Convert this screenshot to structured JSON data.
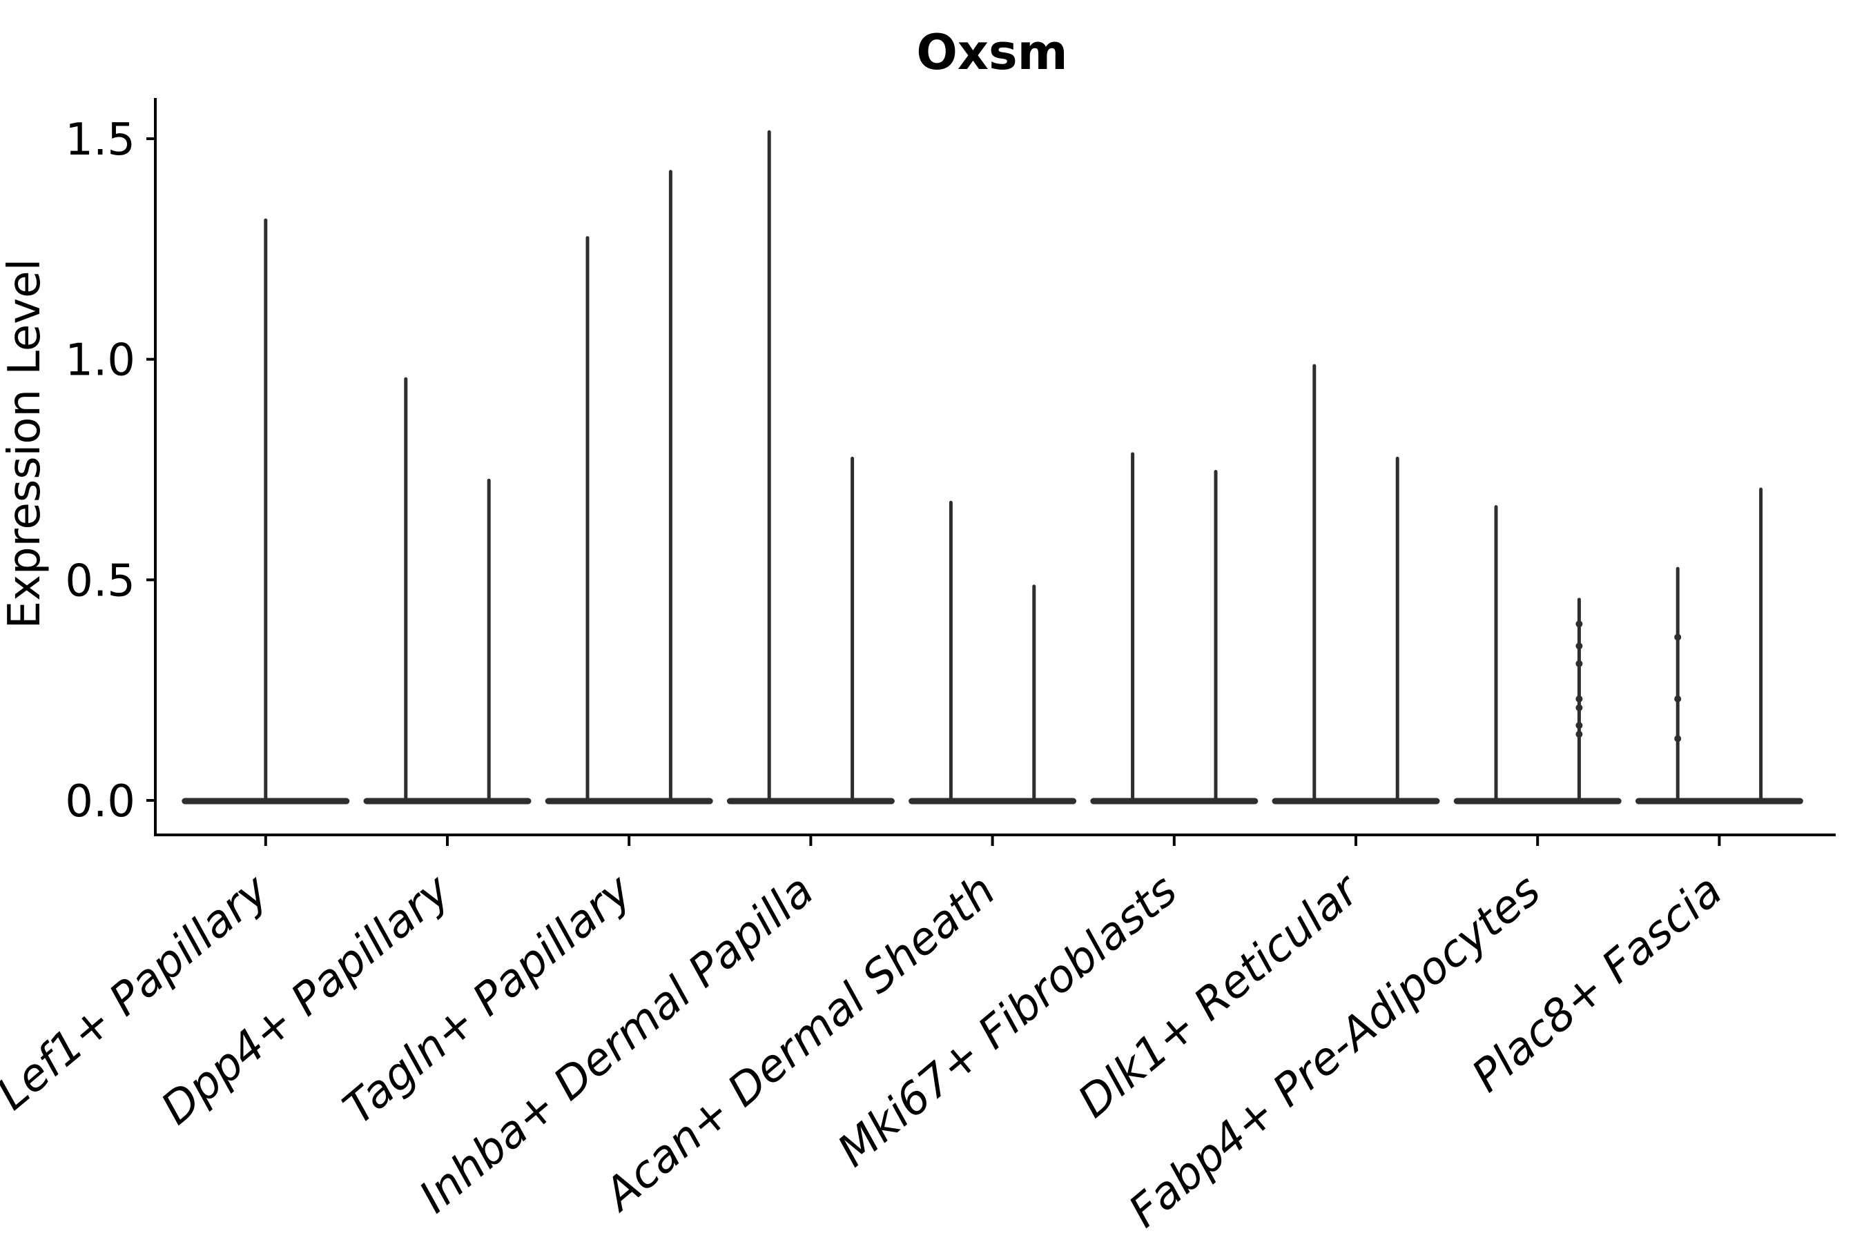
{
  "figure": {
    "background_color": "#ffffff",
    "axis_color": "#000000",
    "violin_color": "#2e2e2e"
  },
  "chart_data": {
    "type": "violin",
    "title": "Oxsm",
    "ylabel": "Expression Level",
    "xlabel": "",
    "ylim": [
      -0.08,
      1.59
    ],
    "yticks": [
      "0.0",
      "0.5",
      "1.0",
      "1.5"
    ],
    "ytick_values": [
      0.0,
      0.5,
      1.0,
      1.5
    ],
    "grid": false,
    "legend": false,
    "description": "Needle-thin black violins: dense flat base at expression 0 with a thin central spike rising to the maximum expression value per group; two violins per category (one centered violin for the first category).",
    "categories": [
      "Lef1+ Papillary",
      "Dpp4+ Papillary",
      "Tagln+ Papillary",
      "Inhba+ Dermal Papilla",
      "Acan+ Dermal Sheath",
      "Mki67+ Fibroblasts",
      "Dlk1+ Reticular",
      "Fabp4+ Pre-Adipocytes",
      "Plac8+ Fascia"
    ],
    "violins": [
      {
        "category": "Lef1+ Papillary",
        "components": [
          {
            "position": "center",
            "max_expression": 1.32,
            "dots": []
          }
        ]
      },
      {
        "category": "Dpp4+ Papillary",
        "components": [
          {
            "position": "left",
            "max_expression": 0.96,
            "dots": []
          },
          {
            "position": "right",
            "max_expression": 0.73,
            "dots": []
          }
        ]
      },
      {
        "category": "Tagln+ Papillary",
        "components": [
          {
            "position": "left",
            "max_expression": 1.28,
            "dots": []
          },
          {
            "position": "right",
            "max_expression": 1.43,
            "dots": []
          }
        ]
      },
      {
        "category": "Inhba+ Dermal Papilla",
        "components": [
          {
            "position": "left",
            "max_expression": 1.52,
            "dots": []
          },
          {
            "position": "right",
            "max_expression": 0.78,
            "dots": []
          }
        ]
      },
      {
        "category": "Acan+ Dermal Sheath",
        "components": [
          {
            "position": "left",
            "max_expression": 0.68,
            "dots": []
          },
          {
            "position": "right",
            "max_expression": 0.49,
            "dots": []
          }
        ]
      },
      {
        "category": "Mki67+ Fibroblasts",
        "components": [
          {
            "position": "left",
            "max_expression": 0.79,
            "dots": []
          },
          {
            "position": "right",
            "max_expression": 0.75,
            "dots": []
          }
        ]
      },
      {
        "category": "Dlk1+ Reticular",
        "components": [
          {
            "position": "left",
            "max_expression": 0.99,
            "dots": []
          },
          {
            "position": "right",
            "max_expression": 0.78,
            "dots": []
          }
        ]
      },
      {
        "category": "Fabp4+ Pre-Adipocytes",
        "components": [
          {
            "position": "left",
            "max_expression": 0.67,
            "dots": []
          },
          {
            "position": "right",
            "max_expression": 0.46,
            "dots": [
              0.4,
              0.35,
              0.31,
              0.23,
              0.21,
              0.17,
              0.15
            ]
          }
        ]
      },
      {
        "category": "Plac8+ Fascia",
        "components": [
          {
            "position": "left",
            "max_expression": 0.53,
            "dots": [
              0.37,
              0.23,
              0.14
            ]
          },
          {
            "position": "right",
            "max_expression": 0.71,
            "dots": []
          }
        ]
      }
    ]
  }
}
